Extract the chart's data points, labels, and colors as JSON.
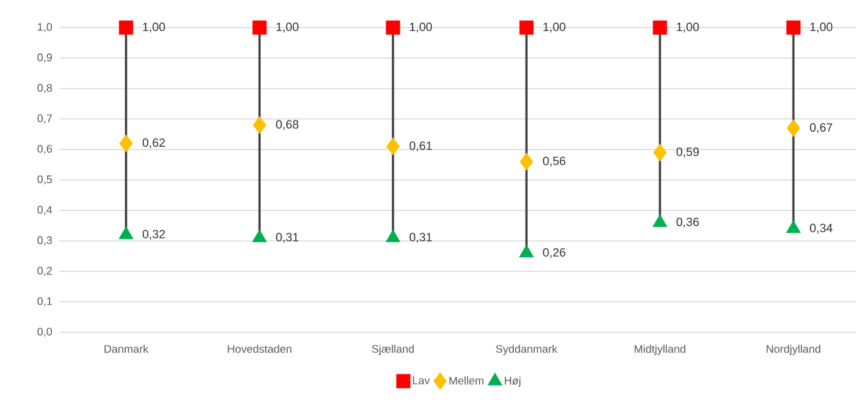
{
  "chart_data": {
    "type": "scatter",
    "categories": [
      "Danmark",
      "Hovedstaden",
      "Sjælland",
      "Syddanmark",
      "Midtjylland",
      "Nordjylland"
    ],
    "series": [
      {
        "name": "Lav",
        "color": "#ff0000",
        "marker": "square",
        "values": [
          1.0,
          1.0,
          1.0,
          1.0,
          1.0,
          1.0
        ],
        "value_labels": [
          "1,00",
          "1,00",
          "1,00",
          "1,00",
          "1,00",
          "1,00"
        ]
      },
      {
        "name": "Mellem",
        "color": "#ffc000",
        "marker": "diamond",
        "values": [
          0.62,
          0.68,
          0.61,
          0.56,
          0.59,
          0.67
        ],
        "value_labels": [
          "0,62",
          "0,68",
          "0,61",
          "0,56",
          "0,59",
          "0,67"
        ]
      },
      {
        "name": "Høj",
        "color": "#00b050",
        "marker": "triangle",
        "values": [
          0.32,
          0.31,
          0.31,
          0.26,
          0.36,
          0.34
        ],
        "value_labels": [
          "0,32",
          "0,31",
          "0,31",
          "0,26",
          "0,36",
          "0,34"
        ]
      }
    ],
    "ylim": [
      0,
      1
    ],
    "yticks": [
      {
        "value": 0,
        "label": "0,0"
      },
      {
        "value": 0.1,
        "label": "0,1"
      },
      {
        "value": 0.2,
        "label": "0,2"
      },
      {
        "value": 0.3,
        "label": "0,3"
      },
      {
        "value": 0.4,
        "label": "0,4"
      },
      {
        "value": 0.5,
        "label": "0,5"
      },
      {
        "value": 0.6,
        "label": "0,6"
      },
      {
        "value": 0.7,
        "label": "0,7"
      },
      {
        "value": 0.8,
        "label": "0,8"
      },
      {
        "value": 0.9,
        "label": "0,9"
      },
      {
        "value": 1,
        "label": "1,0"
      }
    ],
    "grid": "y",
    "legend": "bottom"
  }
}
